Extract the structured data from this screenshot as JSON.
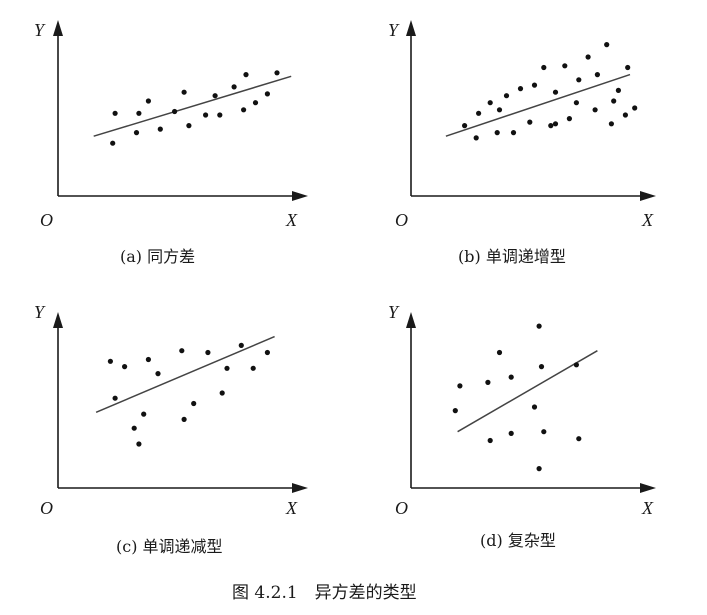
{
  "chart_data": [
    {
      "type": "scatter",
      "caption": "(a) 同方差",
      "xlabel": "X",
      "ylabel": "Y",
      "origin_label": "O",
      "xlim": [
        0,
        10
      ],
      "ylim": [
        0,
        10
      ],
      "fit_line": {
        "x": [
          1.5,
          9.8
        ],
        "y": [
          3.4,
          6.8
        ]
      },
      "points": [
        [
          2.4,
          4.7
        ],
        [
          2.3,
          3.0
        ],
        [
          3.3,
          3.6
        ],
        [
          3.4,
          4.7
        ],
        [
          3.8,
          5.4
        ],
        [
          4.3,
          3.8
        ],
        [
          4.9,
          4.8
        ],
        [
          5.3,
          5.9
        ],
        [
          5.5,
          4.0
        ],
        [
          6.2,
          4.6
        ],
        [
          6.6,
          5.7
        ],
        [
          6.8,
          4.6
        ],
        [
          7.4,
          6.2
        ],
        [
          7.8,
          4.9
        ],
        [
          8.3,
          5.3
        ],
        [
          7.9,
          6.9
        ],
        [
          8.8,
          5.8
        ],
        [
          9.2,
          7.0
        ]
      ]
    },
    {
      "type": "scatter",
      "caption": "(b) 单调递增型",
      "xlabel": "X",
      "ylabel": "Y",
      "origin_label": "O",
      "xlim": [
        0,
        10
      ],
      "ylim": [
        0,
        10
      ],
      "fit_line": {
        "x": [
          1.5,
          9.4
        ],
        "y": [
          3.4,
          6.9
        ]
      },
      "points": [
        [
          2.3,
          4.0
        ],
        [
          2.8,
          3.3
        ],
        [
          2.9,
          4.7
        ],
        [
          3.4,
          5.3
        ],
        [
          3.8,
          4.9
        ],
        [
          4.1,
          5.7
        ],
        [
          4.4,
          3.6
        ],
        [
          4.7,
          6.1
        ],
        [
          5.1,
          4.2
        ],
        [
          5.3,
          6.3
        ],
        [
          5.7,
          7.3
        ],
        [
          6.0,
          4.0
        ],
        [
          6.2,
          5.9
        ],
        [
          6.6,
          7.4
        ],
        [
          6.8,
          4.4
        ],
        [
          7.2,
          6.6
        ],
        [
          7.6,
          7.9
        ],
        [
          7.9,
          4.9
        ],
        [
          8.0,
          6.9
        ],
        [
          8.4,
          8.6
        ],
        [
          8.6,
          4.1
        ],
        [
          8.9,
          6.0
        ],
        [
          9.2,
          4.6
        ],
        [
          9.3,
          7.3
        ],
        [
          9.6,
          5.0
        ],
        [
          3.7,
          3.6
        ],
        [
          6.2,
          4.1
        ],
        [
          7.1,
          5.3
        ],
        [
          8.7,
          5.4
        ]
      ]
    },
    {
      "type": "scatter",
      "caption": "(c) 单调递减型",
      "xlabel": "X",
      "ylabel": "Y",
      "origin_label": "O",
      "xlim": [
        0,
        10
      ],
      "ylim": [
        0,
        10
      ],
      "fit_line": {
        "x": [
          1.6,
          9.1
        ],
        "y": [
          4.3,
          8.6
        ]
      },
      "points": [
        [
          2.2,
          7.2
        ],
        [
          2.4,
          5.1
        ],
        [
          2.8,
          6.9
        ],
        [
          3.2,
          3.4
        ],
        [
          3.8,
          7.3
        ],
        [
          3.4,
          2.5
        ],
        [
          3.6,
          4.2
        ],
        [
          4.2,
          6.5
        ],
        [
          5.2,
          7.8
        ],
        [
          5.3,
          3.9
        ],
        [
          5.7,
          4.8
        ],
        [
          6.3,
          7.7
        ],
        [
          6.9,
          5.4
        ],
        [
          7.1,
          6.8
        ],
        [
          7.7,
          8.1
        ],
        [
          8.2,
          6.8
        ],
        [
          8.8,
          7.7
        ]
      ]
    },
    {
      "type": "scatter",
      "caption": "(d) 复杂型",
      "xlabel": "X",
      "ylabel": "Y",
      "origin_label": "O",
      "xlim": [
        0,
        10
      ],
      "ylim": [
        0,
        10
      ],
      "fit_line": {
        "x": [
          2.0,
          8.0
        ],
        "y": [
          3.2,
          7.8
        ]
      },
      "points": [
        [
          1.9,
          4.4
        ],
        [
          2.1,
          5.8
        ],
        [
          3.3,
          6.0
        ],
        [
          3.4,
          2.7
        ],
        [
          3.8,
          7.7
        ],
        [
          4.3,
          6.3
        ],
        [
          4.3,
          3.1
        ],
        [
          5.3,
          4.6
        ],
        [
          5.5,
          9.2
        ],
        [
          5.5,
          1.1
        ],
        [
          5.7,
          3.2
        ],
        [
          5.6,
          6.9
        ],
        [
          7.1,
          7.0
        ],
        [
          7.2,
          2.8
        ]
      ]
    }
  ],
  "figure_caption": "图 4.2.1　异方差的类型"
}
